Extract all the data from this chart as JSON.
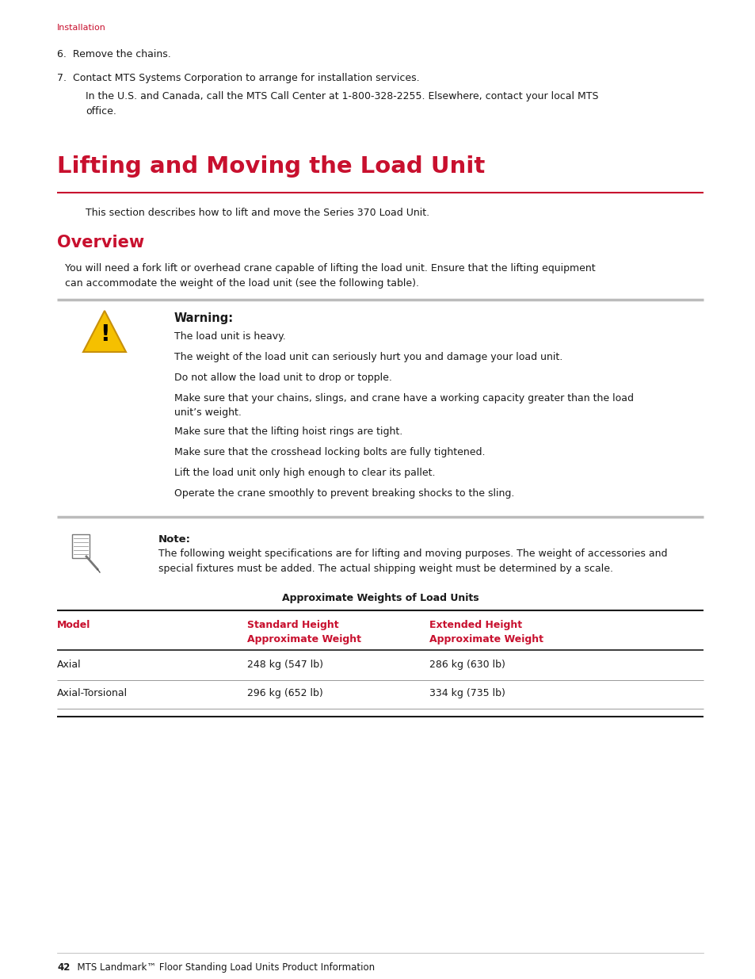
{
  "bg_color": "#ffffff",
  "crimson": "#c8102e",
  "black": "#1a1a1a",
  "section_header_top": "Installation",
  "item6": "6.  Remove the chains.",
  "item7": "7.  Contact MTS Systems Corporation to arrange for installation services.",
  "item7_sub": "In the U.S. and Canada, call the MTS Call Center at 1-800-328-2255. Elsewhere, contact your local MTS\noffice.",
  "chapter_title": "Lifting and Moving the Load Unit",
  "chapter_desc": "This section describes how to lift and move the Series 370 Load Unit.",
  "overview_title": "Overview",
  "overview_body": "You will need a fork lift or overhead crane capable of lifting the load unit. Ensure that the lifting equipment\ncan accommodate the weight of the load unit (see the following table).",
  "warning_title": "Warning:",
  "warning_lines": [
    "The load unit is heavy.",
    "The weight of the load unit can seriously hurt you and damage your load unit.",
    "Do not allow the load unit to drop or topple.",
    "Make sure that your chains, slings, and crane have a working capacity greater than the load\nunit’s weight.",
    "Make sure that the lifting hoist rings are tight.",
    "Make sure that the crosshead locking bolts are fully tightened.",
    "Lift the load unit only high enough to clear its pallet.",
    "Operate the crane smoothly to prevent breaking shocks to the sling."
  ],
  "note_title": "Note:",
  "note_body": "The following weight specifications are for lifting and moving purposes. The weight of accessories and\nspecial fixtures must be added. The actual shipping weight must be determined by a scale.",
  "table_title": "Approximate Weights of Load Units",
  "table_col1_header": "Model",
  "table_col2_header_line1": "Standard Height",
  "table_col2_header_line2": "Approximate Weight",
  "table_col3_header_line1": "Extended Height",
  "table_col3_header_line2": "Approximate Weight",
  "table_rows": [
    [
      "Axial",
      "248 kg (547 lb)",
      "286 kg (630 lb)"
    ],
    [
      "Axial-Torsional",
      "296 kg (652 lb)",
      "334 kg (735 lb)"
    ]
  ],
  "footer_num": "42",
  "footer_rest": "  MTS Landmark™ Floor Standing Load Units Product Information"
}
